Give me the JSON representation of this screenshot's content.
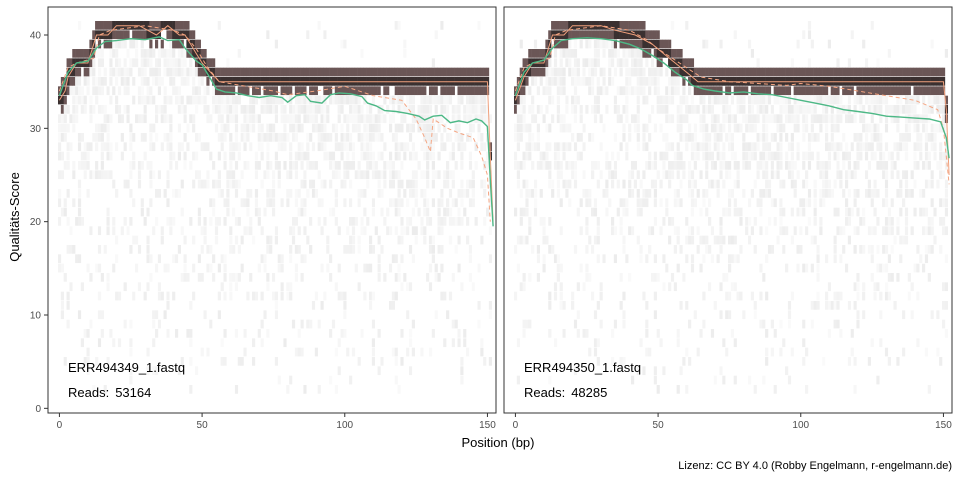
{
  "chart_data": [
    {
      "type": "heatmap",
      "file_label": "ERR494349_1.fastq",
      "reads_label": "Reads:",
      "reads_value": "53164",
      "xlim": [
        -4,
        153
      ],
      "ylim": [
        -0.5,
        43
      ],
      "mean_line": [
        [
          0,
          33.5
        ],
        [
          3,
          36
        ],
        [
          6,
          37
        ],
        [
          10,
          37.2
        ],
        [
          13,
          38.6
        ],
        [
          16,
          39.3
        ],
        [
          20,
          39.4
        ],
        [
          25,
          39.6
        ],
        [
          30,
          39.5
        ],
        [
          35,
          39.8
        ],
        [
          38,
          39.4
        ],
        [
          42,
          39.5
        ],
        [
          44,
          38.6
        ],
        [
          46,
          37.9
        ],
        [
          48,
          37.2
        ],
        [
          50,
          36.8
        ],
        [
          53,
          35.3
        ],
        [
          55,
          34.2
        ],
        [
          58,
          33.9
        ],
        [
          62,
          33.8
        ],
        [
          66,
          33.5
        ],
        [
          70,
          33.3
        ],
        [
          74,
          33.5
        ],
        [
          78,
          33.3
        ],
        [
          80,
          32.8
        ],
        [
          83,
          33.5
        ],
        [
          86,
          33.6
        ],
        [
          88,
          32.9
        ],
        [
          92,
          32.7
        ],
        [
          95,
          33.6
        ],
        [
          98,
          33.8
        ],
        [
          102,
          33.7
        ],
        [
          106,
          33.4
        ],
        [
          108,
          32.7
        ],
        [
          111,
          32.4
        ],
        [
          114,
          31.9
        ],
        [
          118,
          31.8
        ],
        [
          122,
          31.6
        ],
        [
          126,
          31.3
        ],
        [
          128,
          30.9
        ],
        [
          131,
          31.3
        ],
        [
          134,
          31.4
        ],
        [
          137,
          30.6
        ],
        [
          140,
          30.8
        ],
        [
          143,
          30.6
        ],
        [
          146,
          31.0
        ],
        [
          148,
          30.8
        ],
        [
          150,
          30.2
        ],
        [
          151,
          24.5
        ],
        [
          152,
          19.5
        ]
      ],
      "median_line": [
        [
          0,
          33.0
        ],
        [
          2,
          34.0
        ],
        [
          3,
          35.5
        ],
        [
          6,
          37
        ],
        [
          10,
          37
        ],
        [
          13,
          40
        ],
        [
          17,
          40
        ],
        [
          20,
          41
        ],
        [
          28,
          41
        ],
        [
          34,
          40
        ],
        [
          38,
          41
        ],
        [
          42,
          40
        ],
        [
          44,
          40
        ],
        [
          46,
          39
        ],
        [
          48,
          38
        ],
        [
          50,
          37
        ],
        [
          53,
          36
        ],
        [
          56,
          35
        ],
        [
          150,
          35
        ],
        [
          151,
          27
        ],
        [
          152,
          20
        ]
      ],
      "q_line": [
        [
          0,
          34
        ],
        [
          3,
          36.5
        ],
        [
          6,
          37
        ],
        [
          12,
          37.5
        ],
        [
          14,
          40
        ],
        [
          18,
          40.5
        ],
        [
          30,
          41
        ],
        [
          40,
          40.5
        ],
        [
          44,
          40
        ],
        [
          48,
          38.5
        ],
        [
          52,
          36.5
        ],
        [
          56,
          35
        ],
        [
          75,
          34
        ],
        [
          80,
          33.6
        ],
        [
          90,
          34
        ],
        [
          100,
          34.5
        ],
        [
          110,
          33.5
        ],
        [
          120,
          33
        ],
        [
          125,
          31
        ],
        [
          128,
          29
        ],
        [
          130,
          27.5
        ],
        [
          131,
          31
        ],
        [
          136,
          30
        ],
        [
          140,
          29.5
        ],
        [
          145,
          29
        ],
        [
          148,
          27
        ],
        [
          150,
          25
        ],
        [
          151,
          20
        ]
      ],
      "cutoff": 53
    },
    {
      "type": "heatmap",
      "file_label": "ERR494350_1.fastq",
      "reads_label": "Reads:",
      "reads_value": "48285",
      "xlim": [
        -4,
        153
      ],
      "ylim": [
        -0.5,
        43
      ],
      "mean_line": [
        [
          0,
          33.5
        ],
        [
          3,
          36
        ],
        [
          6,
          37
        ],
        [
          10,
          37.3
        ],
        [
          13,
          38.6
        ],
        [
          16,
          39.4
        ],
        [
          20,
          39.6
        ],
        [
          25,
          39.7
        ],
        [
          30,
          39.6
        ],
        [
          35,
          39.4
        ],
        [
          40,
          39
        ],
        [
          44,
          38.5
        ],
        [
          48,
          37.8
        ],
        [
          52,
          37
        ],
        [
          56,
          36
        ],
        [
          60,
          35.2
        ],
        [
          62,
          34.6
        ],
        [
          66,
          34.2
        ],
        [
          70,
          34.0
        ],
        [
          75,
          33.8
        ],
        [
          80,
          33.9
        ],
        [
          85,
          33.7
        ],
        [
          90,
          33.6
        ],
        [
          95,
          33.3
        ],
        [
          100,
          33.0
        ],
        [
          105,
          32.7
        ],
        [
          110,
          32.4
        ],
        [
          115,
          32.0
        ],
        [
          120,
          31.8
        ],
        [
          125,
          31.6
        ],
        [
          130,
          31.3
        ],
        [
          135,
          31.2
        ],
        [
          140,
          31.1
        ],
        [
          145,
          31.0
        ],
        [
          149,
          30.7
        ],
        [
          151,
          29
        ],
        [
          152,
          26.8
        ]
      ],
      "median_line": [
        [
          0,
          33
        ],
        [
          3,
          35.5
        ],
        [
          6,
          37
        ],
        [
          10,
          37
        ],
        [
          13,
          40
        ],
        [
          17,
          40
        ],
        [
          20,
          41
        ],
        [
          30,
          41
        ],
        [
          35,
          40.5
        ],
        [
          42,
          40
        ],
        [
          48,
          39
        ],
        [
          52,
          38
        ],
        [
          56,
          37
        ],
        [
          60,
          36
        ],
        [
          64,
          35
        ],
        [
          150,
          35
        ],
        [
          151,
          32
        ],
        [
          152,
          25
        ]
      ],
      "q_line": [
        [
          0,
          34
        ],
        [
          3,
          36.5
        ],
        [
          6,
          37
        ],
        [
          12,
          37.5
        ],
        [
          14,
          40
        ],
        [
          18,
          40.5
        ],
        [
          30,
          41
        ],
        [
          40,
          40.5
        ],
        [
          46,
          39.5
        ],
        [
          50,
          38.5
        ],
        [
          55,
          37.5
        ],
        [
          60,
          36.5
        ],
        [
          65,
          35.5
        ],
        [
          75,
          35
        ],
        [
          85,
          34.8
        ],
        [
          95,
          34.6
        ],
        [
          100,
          34.8
        ],
        [
          110,
          34.5
        ],
        [
          120,
          34
        ],
        [
          130,
          33.5
        ],
        [
          140,
          33
        ],
        [
          148,
          32
        ],
        [
          150,
          30
        ],
        [
          151,
          27
        ],
        [
          152,
          24
        ]
      ],
      "cutoff": 62
    }
  ],
  "axes": {
    "x_title": "Position (bp)",
    "y_title": "Qualitäts-Score",
    "x_ticks": [
      0,
      50,
      100,
      150
    ],
    "y_ticks": [
      0,
      10,
      20,
      30,
      40
    ]
  },
  "colors": {
    "mean_line": "#4db886",
    "median_line": "#f0a07c",
    "q_line": "#f5a582",
    "tile_dark": "#3a3030",
    "tile_light": "#eeeeee"
  },
  "credit": "Lizenz: CC BY 4.0 (Robby Engelmann, r-engelmann.de)"
}
